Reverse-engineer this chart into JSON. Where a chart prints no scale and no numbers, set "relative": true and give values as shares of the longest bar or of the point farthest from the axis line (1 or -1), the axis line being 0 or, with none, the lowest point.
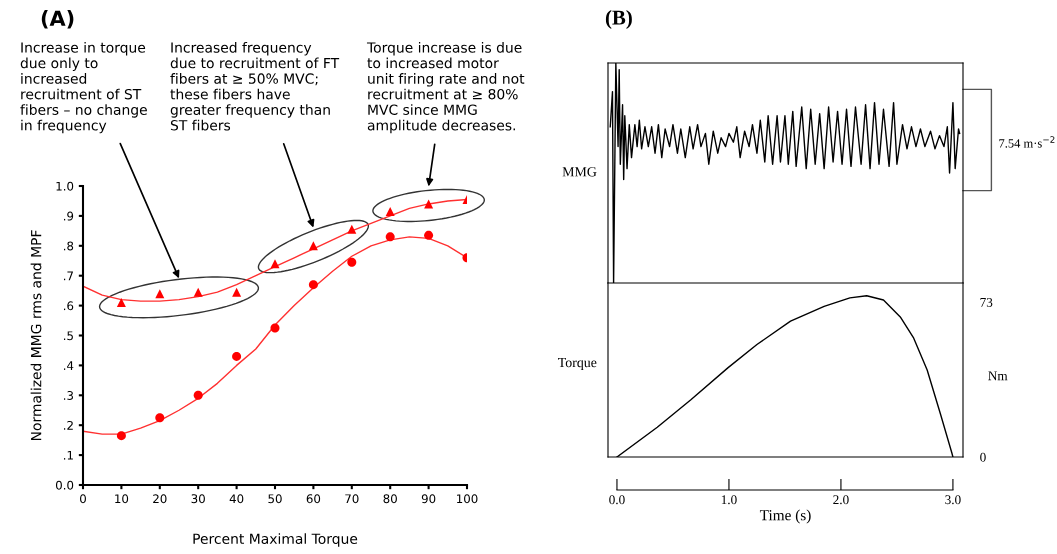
{
  "chart_data": [
    {
      "type": "scatter",
      "title": "(A)",
      "xlabel": "Percent Maximal Torque",
      "ylabel": "Normalized MMG rms and MPF",
      "xlim": [
        0,
        100
      ],
      "xticks": [
        0,
        10,
        20,
        30,
        40,
        50,
        60,
        70,
        80,
        90,
        100
      ],
      "ylim": [
        0,
        1
      ],
      "yticks": [
        {
          "value": 0,
          "label": "0.0"
        },
        {
          "value": 0.1,
          "label": ".1"
        },
        {
          "value": 0.2,
          "label": ".2"
        },
        {
          "value": 0.3,
          "label": ".3"
        },
        {
          "value": 0.4,
          "label": ".4"
        },
        {
          "value": 0.5,
          "label": ".5"
        },
        {
          "value": 0.6,
          "label": ".6"
        },
        {
          "value": 0.7,
          "label": ".7"
        },
        {
          "value": 0.8,
          "label": ".8"
        },
        {
          "value": 0.9,
          "label": ".9"
        },
        {
          "value": 1,
          "label": "1.0"
        }
      ],
      "grid": false,
      "legend": false,
      "series": [
        {
          "type": "scatter",
          "marker": "triangle",
          "color": "#ff0000",
          "x": [
            10,
            20,
            30,
            40,
            50,
            60,
            70,
            80,
            90,
            100
          ],
          "values": [
            0.61,
            0.64,
            0.645,
            0.645,
            0.74,
            0.8,
            0.855,
            0.915,
            0.94,
            0.955
          ]
        },
        {
          "type": "line",
          "color": "#ff3030",
          "x": [
            0,
            5,
            10,
            15,
            20,
            25,
            30,
            35,
            40,
            45,
            50,
            55,
            60,
            65,
            70,
            75,
            80,
            85,
            90,
            95,
            100
          ],
          "values": [
            0.665,
            0.635,
            0.62,
            0.615,
            0.615,
            0.62,
            0.63,
            0.645,
            0.67,
            0.7,
            0.73,
            0.76,
            0.79,
            0.82,
            0.85,
            0.875,
            0.9,
            0.925,
            0.94,
            0.95,
            0.955
          ]
        },
        {
          "type": "scatter",
          "marker": "circle",
          "color": "#ff0000",
          "x": [
            10,
            20,
            30,
            40,
            50,
            60,
            70,
            80,
            90,
            100
          ],
          "values": [
            0.165,
            0.225,
            0.3,
            0.43,
            0.525,
            0.67,
            0.745,
            0.83,
            0.835,
            0.76
          ]
        },
        {
          "type": "line",
          "color": "#ff3030",
          "x": [
            0,
            5,
            10,
            15,
            20,
            25,
            30,
            35,
            40,
            45,
            50,
            55,
            60,
            65,
            70,
            75,
            80,
            85,
            90,
            95,
            100
          ],
          "values": [
            0.18,
            0.17,
            0.17,
            0.19,
            0.215,
            0.25,
            0.29,
            0.34,
            0.4,
            0.455,
            0.535,
            0.6,
            0.66,
            0.715,
            0.765,
            0.8,
            0.82,
            0.83,
            0.825,
            0.8,
            0.76
          ]
        }
      ],
      "annotations": [
        "Increase in torque\ndue only to\nincreased\nrecruitment of ST\nfibers – no change\nin frequency",
        "Increased frequency\ndue to recruitment of FT\nfibers at ≥ 50% MVC;\nthese fibers have\ngreater frequency than\nST fibers",
        "Torque increase is due\nto increased motor\nunit firing rate and not\nrecruitment at ≥ 80%\nMVC since MMG\namplitude decreases."
      ]
    },
    {
      "type": "line",
      "title": "(B)",
      "ylabel": "MMG",
      "relative": true,
      "xlim": [
        -0.08,
        3.09
      ],
      "tick_labels": false,
      "series": [
        {
          "color": "#000000",
          "x": [
            -0.06,
            -0.04,
            -0.03,
            -0.01,
            0.01,
            0.02,
            0.03,
            0.05,
            0.06,
            0.07,
            0.09,
            0.11,
            0.13,
            0.16,
            0.18,
            0.2,
            0.22,
            0.25,
            0.28,
            0.31,
            0.34,
            0.37,
            0.4,
            0.43,
            0.47,
            0.5,
            0.54,
            0.57,
            0.61,
            0.65,
            0.68,
            0.72,
            0.75,
            0.79,
            0.82,
            0.86,
            0.9,
            0.93,
            0.97,
            1.0,
            1.04,
            1.07,
            1.1,
            1.14,
            1.18,
            1.21,
            1.25,
            1.28,
            1.32,
            1.35,
            1.39,
            1.43,
            1.46,
            1.5,
            1.53,
            1.57,
            1.6,
            1.65,
            1.69,
            1.73,
            1.77,
            1.81,
            1.85,
            1.89,
            1.93,
            1.97,
            2.01,
            2.05,
            2.09,
            2.13,
            2.18,
            2.22,
            2.26,
            2.3,
            2.34,
            2.38,
            2.43,
            2.47,
            2.5,
            2.55,
            2.59,
            2.63,
            2.67,
            2.71,
            2.75,
            2.8,
            2.84,
            2.88,
            2.92,
            2.95,
            2.97,
            3.0,
            3.02,
            3.05,
            3.06
          ],
          "values": [
            0.71,
            0.87,
            0,
            1.0,
            0.62,
            0.97,
            0.54,
            0.81,
            0.47,
            0.76,
            0.52,
            0.72,
            0.57,
            0.72,
            0.62,
            0.74,
            0.61,
            0.71,
            0.62,
            0.71,
            0.59,
            0.72,
            0.57,
            0.7,
            0.62,
            0.72,
            0.59,
            0.7,
            0.57,
            0.71,
            0.61,
            0.72,
            0.62,
            0.68,
            0.54,
            0.69,
            0.59,
            0.66,
            0.62,
            0.68,
            0.64,
            0.71,
            0.57,
            0.69,
            0.62,
            0.72,
            0.59,
            0.74,
            0.55,
            0.76,
            0.54,
            0.76,
            0.55,
            0.76,
            0.54,
            0.78,
            0.53,
            0.8,
            0.52,
            0.79,
            0.54,
            0.77,
            0.52,
            0.8,
            0.55,
            0.78,
            0.54,
            0.79,
            0.53,
            0.8,
            0.54,
            0.81,
            0.52,
            0.82,
            0.54,
            0.79,
            0.53,
            0.82,
            0.54,
            0.72,
            0.61,
            0.71,
            0.62,
            0.7,
            0.62,
            0.69,
            0.61,
            0.67,
            0.62,
            0.71,
            0.5,
            0.82,
            0.52,
            0.7,
            0.68
          ]
        }
      ],
      "annotations": [
        "7.54 m·s$^{−2}$"
      ]
    },
    {
      "type": "line",
      "ylabel": "Torque",
      "y2label": "Nm",
      "xlabel": "Time (s)",
      "xlim": [
        -0.08,
        3.09
      ],
      "xticks": [
        {
          "value": 0,
          "label": "0.0"
        },
        {
          "value": 1,
          "label": "1.0"
        },
        {
          "value": 2,
          "label": "2.0"
        },
        {
          "value": 3,
          "label": "3.0"
        }
      ],
      "ylim": [
        0,
        82
      ],
      "yticks": [
        0,
        73
      ],
      "series": [
        {
          "color": "#000000",
          "x": [
            0,
            0.36,
            0.66,
            0.99,
            1.25,
            1.55,
            1.85,
            2.08,
            2.23,
            2.38,
            2.53,
            2.65,
            2.77,
            2.89,
            2.99,
            3.0
          ],
          "values": [
            0,
            14,
            27,
            42,
            53,
            64,
            71,
            75,
            76,
            74,
            66,
            56,
            41,
            20,
            2,
            0
          ]
        }
      ]
    }
  ]
}
